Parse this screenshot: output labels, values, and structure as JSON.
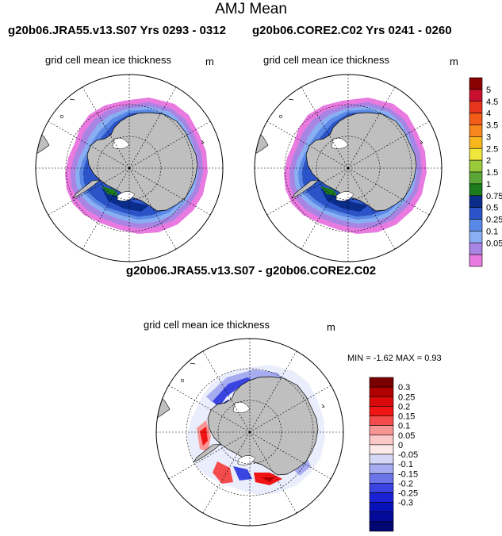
{
  "title": "AMJ Mean",
  "panel_left": {
    "run_title": "g20b06.JRA55.v13.S07  Yrs 0293 - 0312",
    "variable": "grid cell mean ice thickness",
    "units": "m"
  },
  "panel_right": {
    "run_title": "g20b06.CORE2.C02  Yrs 0241 - 0260",
    "variable": "grid cell mean ice thickness",
    "units": "m"
  },
  "panel_diff": {
    "run_title": "g20b06.JRA55.v13.S07 - g20b06.CORE2.C02",
    "variable": "grid cell mean ice thickness",
    "units": "m",
    "minmax": "MIN =  -1.62 MAX =    0.93"
  },
  "colorbar_top": {
    "labels": [
      "5",
      "4.5",
      "4",
      "3.5",
      "3",
      "2.5",
      "2",
      "1.5",
      "1",
      "0.75",
      "0.5",
      "0.25",
      "0.1",
      "0.05"
    ],
    "colors": [
      "#8b0000",
      "#c8102e",
      "#e8361c",
      "#f25c19",
      "#f7861c",
      "#f8b71d",
      "#f1e63c",
      "#9ac93c",
      "#5aa637",
      "#1d7a1d",
      "#0a2d8c",
      "#2b54c8",
      "#5a88e6",
      "#8aaef2",
      "#a884e3",
      "#e87ae0"
    ]
  },
  "colorbar_diff": {
    "labels": [
      "0.3",
      "0.25",
      "0.2",
      "0.15",
      "0.1",
      "0.05",
      "0",
      "-0.05",
      "-0.1",
      "-0.15",
      "-0.2",
      "-0.25",
      "-0.3"
    ],
    "colors": [
      "#7a0000",
      "#b00000",
      "#d80a0a",
      "#f01414",
      "#f44c4c",
      "#f89494",
      "#fcc8c8",
      "#fde9e9",
      "#d4d8f6",
      "#a6acf0",
      "#6c74ea",
      "#3a44e0",
      "#1a22d4",
      "#0810b8",
      "#040a98",
      "#020670"
    ]
  }
}
